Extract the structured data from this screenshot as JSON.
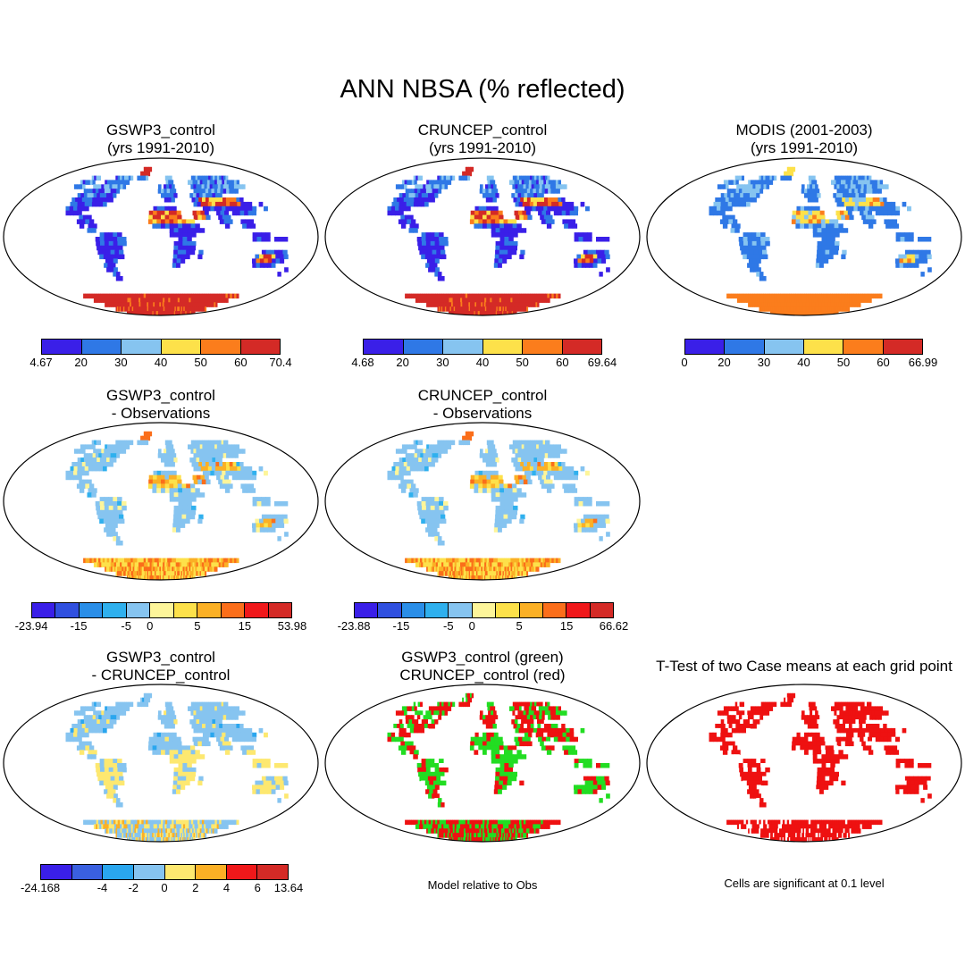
{
  "title": "ANN NBSA (% reflected)",
  "chart_data": [
    {
      "type": "heatmap",
      "position": "top-left",
      "title_lines": [
        "GSWP3_control",
        "(yrs 1991-2010)"
      ],
      "scheme": "abs",
      "colorbar": {
        "colors": [
          "#3a1fe8",
          "#2f78e6",
          "#86c4f0",
          "#fde14a",
          "#fb7d1c",
          "#d42a26"
        ],
        "labels": [
          "4.67",
          "20",
          "30",
          "40",
          "50",
          "60",
          "70.4"
        ]
      }
    },
    {
      "type": "heatmap",
      "position": "top-center",
      "title_lines": [
        "CRUNCEP_control",
        "(yrs 1991-2010)"
      ],
      "scheme": "abs",
      "colorbar": {
        "colors": [
          "#3a1fe8",
          "#2f78e6",
          "#86c4f0",
          "#fde14a",
          "#fb7d1c",
          "#d42a26"
        ],
        "labels": [
          "4.68",
          "20",
          "30",
          "40",
          "50",
          "60",
          "69.64"
        ]
      }
    },
    {
      "type": "heatmap",
      "position": "top-right",
      "title_lines": [
        "MODIS (2001-2003)",
        "(yrs 1991-2010)"
      ],
      "scheme": "obs",
      "colorbar": {
        "colors": [
          "#3a1fe8",
          "#2f78e6",
          "#86c4f0",
          "#fde14a",
          "#fb7d1c",
          "#d42a26"
        ],
        "labels": [
          "0",
          "20",
          "30",
          "40",
          "50",
          "60",
          "66.99"
        ]
      }
    },
    {
      "type": "heatmap",
      "position": "middle-left",
      "title_lines": [
        "GSWP3_control",
        "- Observations"
      ],
      "scheme": "diff",
      "colorbar": {
        "colors": [
          "#3a1fe8",
          "#3050e0",
          "#2a8ee8",
          "#2fb0ee",
          "#86c4f0",
          "#fdf59a",
          "#fde14a",
          "#fbb025",
          "#fb6e1a",
          "#f0181a",
          "#d42a26"
        ],
        "labels": [
          "-23.94",
          "-15",
          "-5",
          "0",
          "5",
          "15",
          "53.98"
        ],
        "label_steps": [
          0,
          2,
          4,
          5,
          7,
          9,
          11
        ]
      }
    },
    {
      "type": "heatmap",
      "position": "middle-center",
      "title_lines": [
        "CRUNCEP_control",
        "- Observations"
      ],
      "scheme": "diff",
      "colorbar": {
        "colors": [
          "#3a1fe8",
          "#3050e0",
          "#2a8ee8",
          "#2fb0ee",
          "#86c4f0",
          "#fdf59a",
          "#fde14a",
          "#fbb025",
          "#fb6e1a",
          "#f0181a",
          "#d42a26"
        ],
        "labels": [
          "-23.88",
          "-15",
          "-5",
          "0",
          "5",
          "15",
          "66.62"
        ],
        "label_steps": [
          0,
          2,
          4,
          5,
          7,
          9,
          11
        ]
      }
    },
    {
      "type": "heatmap",
      "position": "bottom-left",
      "title_lines": [
        "GSWP3_control",
        "- CRUNCEP_control"
      ],
      "scheme": "mdiff",
      "colorbar": {
        "colors": [
          "#3a1fe8",
          "#3a60e0",
          "#2aa6ee",
          "#86c4f0",
          "#fde870",
          "#fbb025",
          "#f0181a",
          "#d42a26"
        ],
        "labels": [
          "-24.168",
          "-4",
          "-2",
          "0",
          "2",
          "4",
          "6",
          "13.64"
        ],
        "label_steps": [
          0,
          2,
          3,
          4,
          5,
          6,
          7,
          8
        ]
      }
    },
    {
      "type": "heatmap",
      "position": "bottom-center",
      "title_lines": [
        "GSWP3_control (green)",
        "CRUNCEP_control (red)"
      ],
      "scheme": "gr",
      "note": "Model relative to Obs"
    },
    {
      "type": "heatmap",
      "position": "bottom-right",
      "title_lines": [
        "T-Test of two Case means at each grid point"
      ],
      "scheme": "ttest",
      "note": "Cells are significant at 0.1 level"
    }
  ]
}
